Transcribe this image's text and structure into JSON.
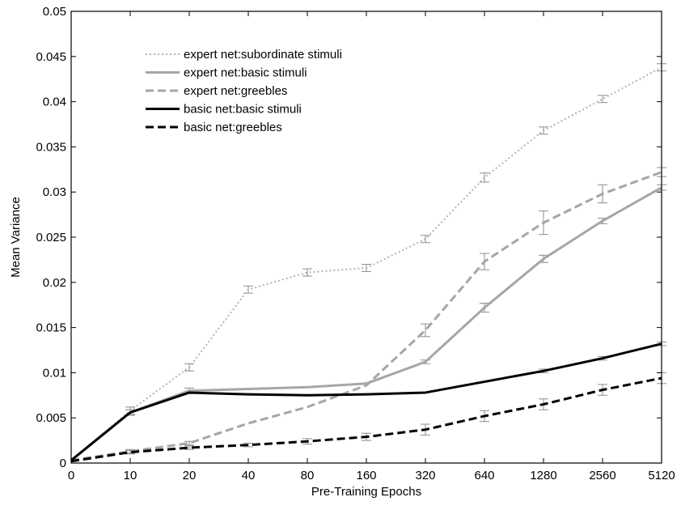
{
  "chart_data": {
    "type": "line",
    "title": "",
    "xlabel": "Pre-Training Epochs",
    "ylabel": "Mean Variance",
    "categories": [
      "0",
      "10",
      "20",
      "40",
      "80",
      "160",
      "320",
      "640",
      "1280",
      "2560",
      "5120"
    ],
    "yticks": [
      "0",
      "0.005",
      "0.01",
      "0.015",
      "0.02",
      "0.025",
      "0.03",
      "0.035",
      "0.04",
      "0.045",
      "0.05"
    ],
    "ylim": [
      0,
      0.05
    ],
    "grid": false,
    "legend_position": "top-left",
    "series": [
      {
        "name": "expert net:subordinate stimuli",
        "color": "#b3b3b3",
        "dash": "dotted",
        "values": [
          0.0003,
          0.0058,
          0.0106,
          0.0192,
          0.0211,
          0.0216,
          0.0248,
          0.0316,
          0.0368,
          0.0403,
          0.0438
        ],
        "errors": [
          0,
          0.0004,
          0.0004,
          0.0004,
          0.0004,
          0.0004,
          0.0004,
          0.0005,
          0.0004,
          0.0004,
          0.0004
        ]
      },
      {
        "name": "expert net:basic stimuli",
        "color": "#a6a6a6",
        "dash": "solid",
        "values": [
          0.0003,
          0.0056,
          0.008,
          0.0082,
          0.0084,
          0.0088,
          0.0112,
          0.0172,
          0.0226,
          0.0268,
          0.0305
        ],
        "errors": [
          0,
          0.0003,
          0.0003,
          0,
          0,
          0,
          0.0002,
          0.0005,
          0.0004,
          0.0003,
          0.0003
        ]
      },
      {
        "name": "expert net:greebles",
        "color": "#a6a6a6",
        "dash": "dashed",
        "values": [
          0.0003,
          0.0013,
          0.0022,
          0.0044,
          0.0062,
          0.0086,
          0.0147,
          0.0223,
          0.0266,
          0.0298,
          0.0322
        ],
        "errors": [
          0,
          0.0002,
          0.0002,
          0,
          0,
          0,
          0.0007,
          0.0009,
          0.0013,
          0.001,
          0.0005
        ]
      },
      {
        "name": "basic net:basic stimuli",
        "color": "#000000",
        "dash": "solid",
        "values": [
          0.0003,
          0.0056,
          0.0078,
          0.0076,
          0.0075,
          0.0076,
          0.0078,
          0.009,
          0.0102,
          0.0116,
          0.0132
        ],
        "errors": [
          0,
          0.0003,
          0.0001,
          0,
          0,
          0,
          0,
          0,
          0.0002,
          0.0002,
          0.0002
        ]
      },
      {
        "name": "basic net:greebles",
        "color": "#000000",
        "dash": "dashed",
        "values": [
          0.0002,
          0.0012,
          0.0017,
          0.002,
          0.0024,
          0.0029,
          0.0037,
          0.0052,
          0.0065,
          0.0081,
          0.0094
        ],
        "errors": [
          0,
          0.0002,
          0.0002,
          0.0002,
          0.0003,
          0.0004,
          0.0006,
          0.0006,
          0.0006,
          0.0006,
          0.0006
        ]
      }
    ]
  }
}
